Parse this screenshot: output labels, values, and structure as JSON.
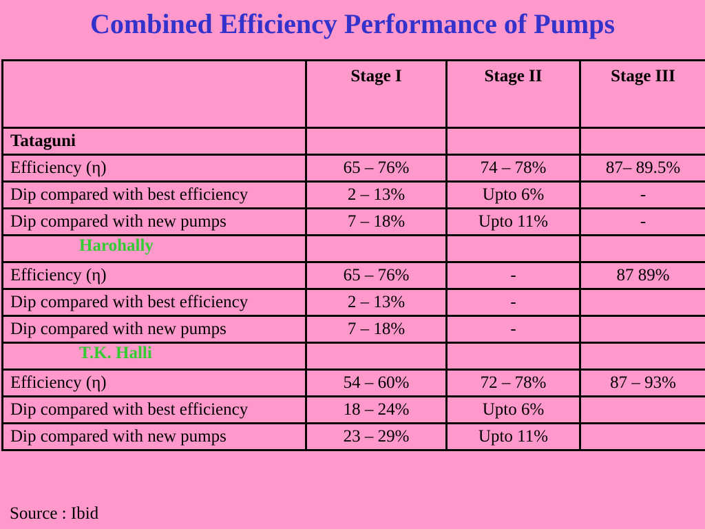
{
  "title": "Combined Efficiency Performance of Pumps",
  "headers": [
    "",
    "Stage I",
    "Stage II",
    "Stage III"
  ],
  "groups": [
    {
      "name": "Tataguni",
      "rows": [
        [
          "Efficiency (η)",
          "65 – 76%",
          "74 – 78%",
          "87– 89.5%"
        ],
        [
          "Dip compared with best efficiency",
          "2 – 13%",
          "Upto 6%",
          "-"
        ],
        [
          "Dip compared with new pumps",
          "7 – 18%",
          "Upto 11%",
          "-"
        ]
      ]
    },
    {
      "name": "Harohally",
      "rows": [
        [
          "Efficiency (η)",
          "65 – 76%",
          "-",
          "87 89%"
        ],
        [
          "Dip compared with best efficiency",
          "2 – 13%",
          "-",
          ""
        ],
        [
          "Dip compared with new pumps",
          "7 – 18%",
          "-",
          ""
        ]
      ]
    },
    {
      "name": "T.K. Halli",
      "rows": [
        [
          "Efficiency (η)",
          "54 – 60%",
          "72 – 78%",
          "87 – 93%"
        ],
        [
          "Dip compared with best efficiency",
          "18 – 24%",
          "Upto 6%",
          ""
        ],
        [
          "Dip compared with new pumps",
          "23 – 29%",
          "Upto 11%",
          ""
        ]
      ]
    }
  ],
  "source": "Source : Ibid",
  "colors": {
    "background": "#ff99cc",
    "title": "#3333cc",
    "group_label": "#33cc33"
  }
}
